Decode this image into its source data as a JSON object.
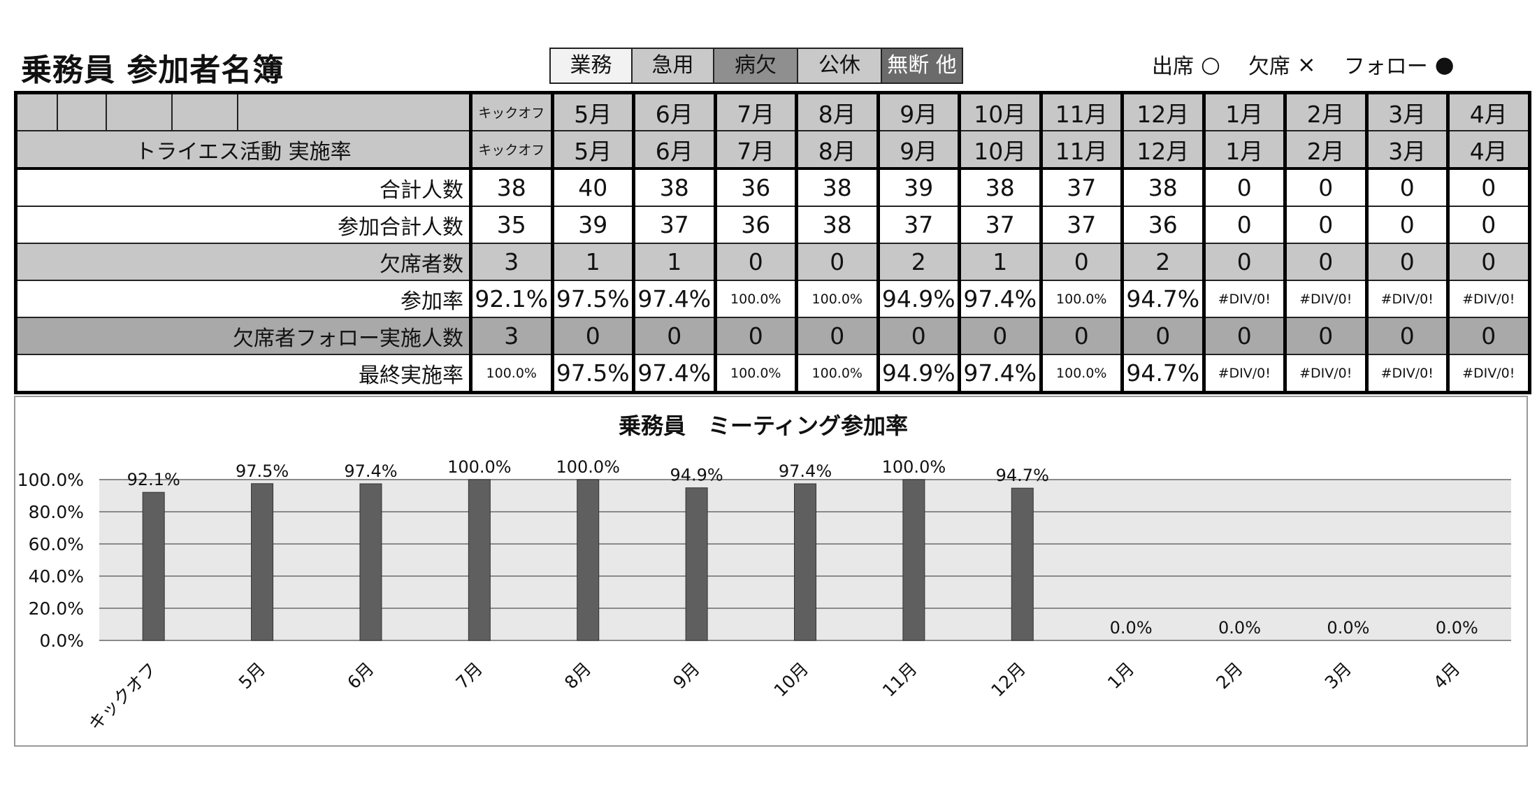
{
  "title": "乗務員 参加者名簿",
  "legend_boxes": [
    {
      "label": "業務",
      "bg": "#f2f2f2",
      "fg": "#111111"
    },
    {
      "label": "急用",
      "bg": "#c9c9c9",
      "fg": "#111111"
    },
    {
      "label": "病欠",
      "bg": "#8f8f8f",
      "fg": "#111111"
    },
    {
      "label": "公休",
      "bg": "#c9c9c9",
      "fg": "#111111"
    },
    {
      "label": "無断 他",
      "bg": "#6b6b6b",
      "fg": "#ffffff"
    }
  ],
  "marks": [
    {
      "label": "出席",
      "symbol": "○"
    },
    {
      "label": "欠席",
      "symbol": "×"
    },
    {
      "label": "フォロー",
      "symbol": "●"
    }
  ],
  "table": {
    "columns": [
      "キックオフ",
      "5月",
      "6月",
      "7月",
      "8月",
      "9月",
      "10月",
      "11月",
      "12月",
      "1月",
      "2月",
      "3月",
      "4月"
    ],
    "row1_label": "",
    "row2_label": "トライエス活動 実施率",
    "rows": [
      {
        "label": "合計人数",
        "style": "white",
        "values": [
          "38",
          "40",
          "38",
          "36",
          "38",
          "39",
          "38",
          "37",
          "38",
          "0",
          "0",
          "0",
          "0"
        ]
      },
      {
        "label": "参加合計人数",
        "style": "white",
        "values": [
          "35",
          "39",
          "37",
          "36",
          "38",
          "37",
          "37",
          "37",
          "36",
          "0",
          "0",
          "0",
          "0"
        ]
      },
      {
        "label": "欠席者数",
        "style": "gray",
        "values": [
          "3",
          "1",
          "1",
          "0",
          "0",
          "2",
          "1",
          "0",
          "2",
          "0",
          "0",
          "0",
          "0"
        ]
      },
      {
        "label": "参加率",
        "style": "white",
        "values": [
          "92.1%",
          "97.5%",
          "97.4%",
          "100.0%",
          "100.0%",
          "94.9%",
          "97.4%",
          "100.0%",
          "94.7%",
          "#DIV/0!",
          "#DIV/0!",
          "#DIV/0!",
          "#DIV/0!"
        ]
      },
      {
        "label": "欠席者フォロー実施人数",
        "style": "dgray",
        "values": [
          "3",
          "0",
          "0",
          "0",
          "0",
          "0",
          "0",
          "0",
          "0",
          "0",
          "0",
          "0",
          "0"
        ]
      },
      {
        "label": "最終実施率",
        "style": "white",
        "values": [
          "100.0%",
          "97.5%",
          "97.4%",
          "100.0%",
          "100.0%",
          "94.9%",
          "97.4%",
          "100.0%",
          "94.7%",
          "#DIV/0!",
          "#DIV/0!",
          "#DIV/0!",
          "#DIV/0!"
        ]
      }
    ]
  },
  "chart_data": {
    "type": "bar",
    "title": "乗務員　ミーティング参加率",
    "categories": [
      "キックオフ",
      "5月",
      "6月",
      "7月",
      "8月",
      "9月",
      "10月",
      "11月",
      "12月",
      "1月",
      "2月",
      "3月",
      "4月"
    ],
    "values": [
      92.1,
      97.5,
      97.4,
      100.0,
      100.0,
      94.9,
      97.4,
      100.0,
      94.7,
      0.0,
      0.0,
      0.0,
      0.0
    ],
    "data_labels": [
      "92.1%",
      "97.5%",
      "97.4%",
      "100.0%",
      "100.0%",
      "94.9%",
      "97.4%",
      "100.0%",
      "94.7%",
      "0.0%",
      "0.0%",
      "0.0%",
      "0.0%"
    ],
    "yticks": [
      "0.0%",
      "20.0%",
      "40.0%",
      "60.0%",
      "80.0%",
      "100.0%"
    ],
    "ylim": [
      0,
      100
    ],
    "grid": true,
    "bar_color": "#5f5f5f",
    "plot_bg": "#e8e8e8"
  }
}
